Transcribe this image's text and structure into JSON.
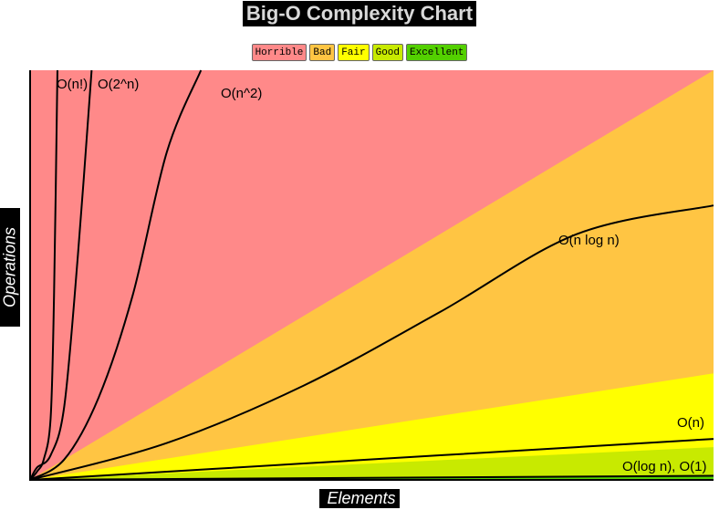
{
  "chart_data": {
    "type": "line",
    "title": "Big-O Complexity Chart",
    "xlabel": "Elements",
    "ylabel": "Operations",
    "xlim": [
      0,
      100
    ],
    "ylim": [
      0,
      100
    ],
    "grid": false,
    "legend_position": "top-center",
    "legend": [
      {
        "name": "Horrible",
        "color": "#ff8989"
      },
      {
        "name": "Bad",
        "color": "#ffc543"
      },
      {
        "name": "Fair",
        "color": "#ffff00"
      },
      {
        "name": "Good",
        "color": "#c8ea00"
      },
      {
        "name": "Excellent",
        "color": "#53d000"
      }
    ],
    "regions": [
      {
        "name": "Horrible",
        "color": "#ff8989",
        "upper_y_at_xmax": 100
      },
      {
        "name": "Bad",
        "color": "#ffc543",
        "upper_y_at_xmax": 100
      },
      {
        "name": "Fair",
        "color": "#ffff00",
        "upper_y_at_xmax": 26
      },
      {
        "name": "Good",
        "color": "#c8ea00",
        "upper_y_at_xmax": 8
      },
      {
        "name": "Excellent",
        "color": "#53d000",
        "upper_y_at_xmax": 1
      }
    ],
    "series": [
      {
        "name": "O(log n), O(1)",
        "x": [
          0,
          100
        ],
        "y": [
          0,
          1
        ]
      },
      {
        "name": "O(n)",
        "x": [
          0,
          20,
          40,
          60,
          80,
          100
        ],
        "y": [
          0,
          2,
          4,
          6,
          8,
          10
        ]
      },
      {
        "name": "O(n log n)",
        "x": [
          0,
          20,
          40,
          60,
          80,
          100
        ],
        "y": [
          0,
          9,
          23,
          41,
          60,
          67
        ]
      },
      {
        "name": "O(n^2)",
        "x": [
          0,
          5,
          10,
          15,
          20,
          25
        ],
        "y": [
          0,
          5,
          20,
          45,
          80,
          100
        ]
      },
      {
        "name": "O(2^n)",
        "x": [
          0,
          1,
          3,
          5,
          7,
          9
        ],
        "y": [
          0,
          3,
          6,
          18,
          55,
          100
        ]
      },
      {
        "name": "O(n!)",
        "x": [
          0,
          1,
          2,
          3,
          3.5,
          4
        ],
        "y": [
          0,
          2,
          5,
          15,
          45,
          100
        ]
      }
    ]
  }
}
